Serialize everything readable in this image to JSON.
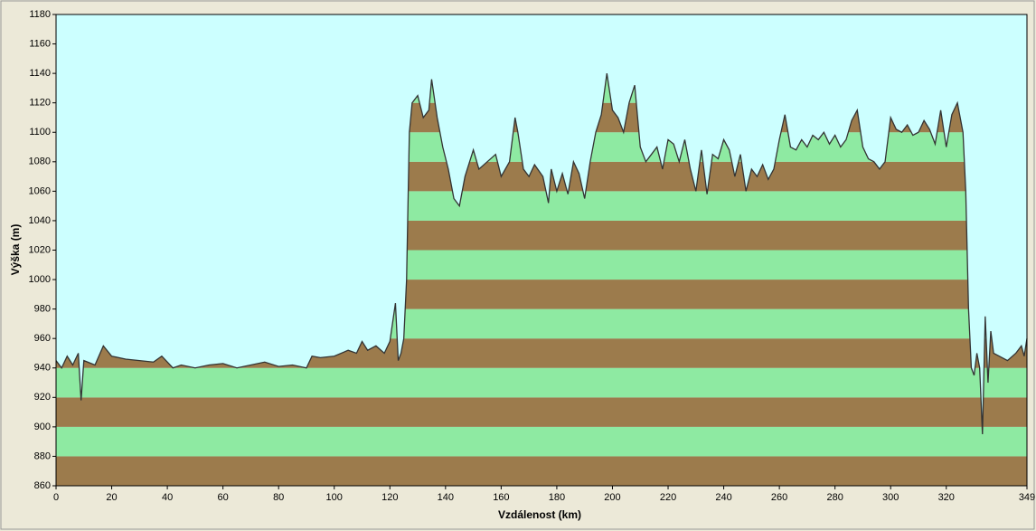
{
  "chart_data": {
    "type": "area",
    "xlabel": "Vzdálenost  (km)",
    "ylabel": "Výška (m)",
    "x": [
      0,
      2,
      4,
      6,
      8,
      9,
      10,
      14,
      17,
      20,
      25,
      30,
      35,
      38,
      42,
      45,
      50,
      55,
      60,
      65,
      70,
      75,
      80,
      85,
      90,
      92,
      95,
      100,
      105,
      108,
      110,
      112,
      115,
      118,
      120,
      122,
      123,
      124,
      125,
      126,
      127,
      128,
      130,
      132,
      134,
      135,
      137,
      139,
      141,
      143,
      145,
      147,
      150,
      152,
      155,
      158,
      160,
      163,
      165,
      166,
      168,
      170,
      172,
      175,
      177,
      178,
      180,
      182,
      184,
      186,
      188,
      190,
      192,
      194,
      196,
      198,
      200,
      202,
      204,
      206,
      208,
      210,
      212,
      214,
      216,
      218,
      220,
      222,
      224,
      226,
      228,
      230,
      232,
      234,
      236,
      238,
      240,
      242,
      244,
      246,
      248,
      250,
      252,
      254,
      256,
      258,
      260,
      262,
      264,
      266,
      268,
      270,
      272,
      274,
      276,
      278,
      280,
      282,
      284,
      286,
      288,
      290,
      292,
      294,
      296,
      298,
      300,
      302,
      304,
      306,
      308,
      310,
      312,
      314,
      316,
      318,
      320,
      322,
      324,
      326,
      327,
      328,
      329,
      330,
      331,
      332,
      333,
      334,
      335,
      336,
      337,
      339,
      342,
      345,
      347,
      348,
      349
    ],
    "values": [
      945,
      940,
      948,
      942,
      950,
      918,
      945,
      942,
      955,
      948,
      946,
      945,
      944,
      948,
      940,
      942,
      940,
      942,
      943,
      940,
      942,
      944,
      941,
      942,
      940,
      948,
      947,
      948,
      952,
      950,
      958,
      952,
      955,
      950,
      958,
      984,
      945,
      950,
      960,
      1000,
      1100,
      1120,
      1125,
      1110,
      1115,
      1136,
      1110,
      1090,
      1075,
      1055,
      1050,
      1070,
      1088,
      1075,
      1080,
      1085,
      1070,
      1080,
      1110,
      1100,
      1075,
      1070,
      1078,
      1070,
      1052,
      1075,
      1060,
      1072,
      1058,
      1080,
      1072,
      1055,
      1080,
      1100,
      1112,
      1140,
      1115,
      1110,
      1100,
      1120,
      1132,
      1090,
      1080,
      1085,
      1090,
      1075,
      1095,
      1092,
      1080,
      1095,
      1075,
      1060,
      1088,
      1058,
      1085,
      1082,
      1095,
      1088,
      1070,
      1085,
      1060,
      1075,
      1070,
      1078,
      1068,
      1075,
      1095,
      1112,
      1090,
      1088,
      1095,
      1090,
      1098,
      1095,
      1100,
      1092,
      1098,
      1090,
      1095,
      1108,
      1115,
      1090,
      1082,
      1080,
      1075,
      1080,
      1110,
      1102,
      1100,
      1105,
      1098,
      1100,
      1108,
      1102,
      1092,
      1115,
      1090,
      1112,
      1120,
      1100,
      1060,
      980,
      940,
      935,
      950,
      940,
      895,
      975,
      930,
      965,
      950,
      948,
      945,
      950,
      955,
      948,
      960
    ],
    "xlim": [
      0,
      349
    ],
    "xticks": [
      0,
      20,
      40,
      60,
      80,
      100,
      120,
      140,
      160,
      180,
      200,
      220,
      240,
      260,
      280,
      300,
      320,
      349
    ],
    "ylim": [
      860,
      1180
    ],
    "yticks": [
      860,
      880,
      900,
      920,
      940,
      960,
      980,
      1000,
      1020,
      1040,
      1060,
      1080,
      1100,
      1120,
      1140,
      1160,
      1180
    ],
    "band_colors": [
      "#9c7b4c",
      "#8eeaa2"
    ],
    "line_color": "#333333",
    "background": "#ccffff"
  }
}
